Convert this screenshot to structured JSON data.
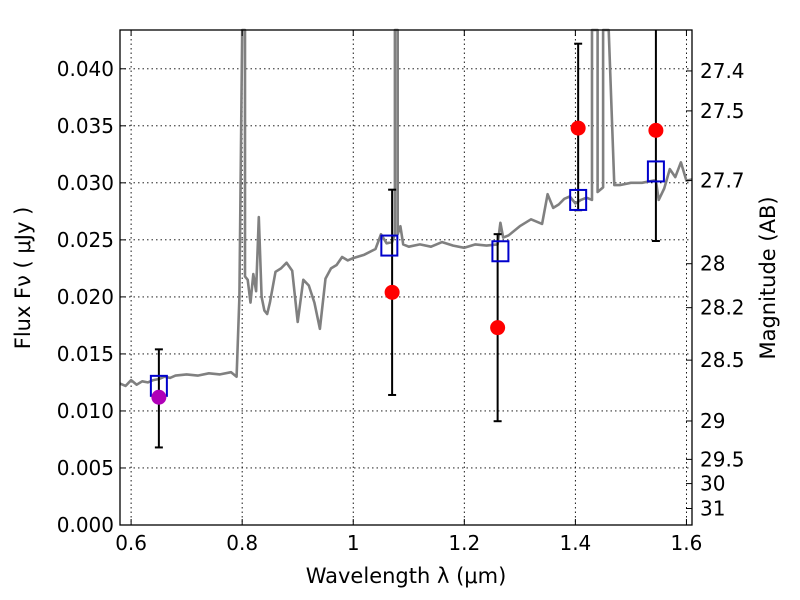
{
  "chart_data": {
    "type": "line",
    "xlabel": "Wavelength  λ (μm)",
    "ylabel": "Flux  Fν  ( μJy )",
    "y2label": "Magnitude (AB)",
    "xlim": [
      0.58,
      1.61
    ],
    "ylim": [
      0.0,
      0.0434
    ],
    "x_ticks": [
      0.6,
      0.8,
      1.0,
      1.2,
      1.4,
      1.6
    ],
    "x_tick_labels": [
      "0.6",
      "0.8",
      "1",
      "1.2",
      "1.4",
      "1.6"
    ],
    "y_ticks": [
      0.0,
      0.005,
      0.01,
      0.015,
      0.02,
      0.025,
      0.03,
      0.035,
      0.04
    ],
    "y_tick_labels": [
      "0.000",
      "0.005",
      "0.010",
      "0.015",
      "0.020",
      "0.025",
      "0.030",
      "0.035",
      "0.040"
    ],
    "mag_ticks": [
      27.4,
      27.5,
      27.7,
      28,
      28.2,
      28.5,
      29,
      29.5,
      30,
      31
    ],
    "mag_tick_labels": [
      "27.4",
      "27.5",
      "27.7",
      "28",
      "28.2",
      "28.5",
      "29",
      "29.5",
      "30",
      "31"
    ],
    "grid": true,
    "series": [
      {
        "type": "line",
        "color": "#808080",
        "x": [
          0.58,
          0.59,
          0.6,
          0.61,
          0.62,
          0.63,
          0.64,
          0.65,
          0.66,
          0.67,
          0.68,
          0.7,
          0.72,
          0.74,
          0.76,
          0.78,
          0.79,
          0.795,
          0.8,
          0.8,
          0.805,
          0.805,
          0.81,
          0.815,
          0.82,
          0.825,
          0.83,
          0.835,
          0.84,
          0.845,
          0.85,
          0.86,
          0.87,
          0.88,
          0.89,
          0.9,
          0.91,
          0.92,
          0.93,
          0.94,
          0.95,
          0.96,
          0.97,
          0.98,
          0.99,
          1.0,
          1.02,
          1.04,
          1.05,
          1.06,
          1.07,
          1.075,
          1.075,
          1.08,
          1.08,
          1.085,
          1.09,
          1.1,
          1.12,
          1.14,
          1.16,
          1.18,
          1.2,
          1.22,
          1.24,
          1.26,
          1.265,
          1.27,
          1.28,
          1.3,
          1.32,
          1.34,
          1.35,
          1.36,
          1.37,
          1.38,
          1.39,
          1.4,
          1.41,
          1.42,
          1.43,
          1.43,
          1.44,
          1.44,
          1.45,
          1.45,
          1.46,
          1.47,
          1.48,
          1.5,
          1.52,
          1.54,
          1.545,
          1.55,
          1.56,
          1.57,
          1.58,
          1.59,
          1.6,
          1.61
        ],
        "values": [
          0.0124,
          0.0122,
          0.0127,
          0.0123,
          0.0126,
          0.0125,
          0.0127,
          0.0128,
          0.013,
          0.0129,
          0.0131,
          0.0132,
          0.0131,
          0.0133,
          0.0132,
          0.0134,
          0.013,
          0.02,
          0.0434,
          0.0434,
          0.0434,
          0.0218,
          0.0215,
          0.0195,
          0.022,
          0.0205,
          0.027,
          0.02,
          0.0188,
          0.0185,
          0.0195,
          0.0222,
          0.0225,
          0.023,
          0.0223,
          0.0178,
          0.0215,
          0.021,
          0.0195,
          0.0172,
          0.0216,
          0.0225,
          0.0228,
          0.0235,
          0.0232,
          0.0234,
          0.0237,
          0.0242,
          0.0255,
          0.0247,
          0.0248,
          0.0255,
          0.0434,
          0.0434,
          0.0255,
          0.0262,
          0.0246,
          0.0244,
          0.0246,
          0.0244,
          0.0248,
          0.0245,
          0.0243,
          0.0246,
          0.0245,
          0.0246,
          0.0265,
          0.0252,
          0.0254,
          0.0262,
          0.0268,
          0.0264,
          0.029,
          0.0278,
          0.0281,
          0.0286,
          0.0288,
          0.0282,
          0.0285,
          0.0287,
          0.0285,
          0.0434,
          0.0434,
          0.0292,
          0.0296,
          0.0434,
          0.0434,
          0.0298,
          0.0298,
          0.03,
          0.03,
          0.0302,
          0.0302,
          0.0285,
          0.0295,
          0.0312,
          0.0305,
          0.0318,
          0.0302,
          0.0303
        ]
      },
      {
        "type": "box",
        "color": "#0000cc",
        "x": [
          0.65,
          1.065,
          1.265,
          1.405,
          1.545
        ],
        "values": [
          0.0122,
          0.0245,
          0.024,
          0.0285,
          0.031
        ]
      },
      {
        "type": "errorbar",
        "color": "#ff0000",
        "x": [
          0.65,
          1.07,
          1.26,
          1.405,
          1.545
        ],
        "values": [
          0.0112,
          0.0204,
          0.0173,
          0.0348,
          0.0346
        ],
        "low": [
          0.0068,
          0.0114,
          0.0091,
          0.0276,
          0.0249
        ],
        "high": [
          0.0154,
          0.0294,
          0.0255,
          0.0422,
          0.0434
        ]
      }
    ],
    "point_colors": [
      "#b000b8",
      "#ff0000",
      "#ff0000",
      "#ff0000",
      "#ff0000"
    ]
  }
}
